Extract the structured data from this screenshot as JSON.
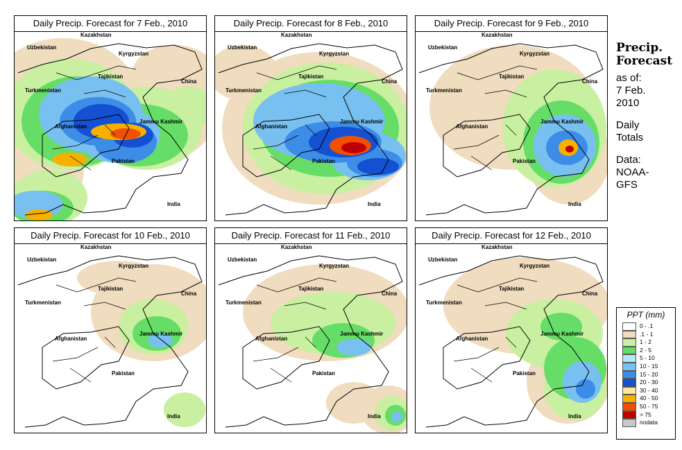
{
  "panels": [
    {
      "title": "Daily Precip. Forecast for  7 Feb., 2010"
    },
    {
      "title": "Daily Precip. Forecast for  8 Feb., 2010"
    },
    {
      "title": "Daily Precip. Forecast for  9 Feb., 2010"
    },
    {
      "title": "Daily Precip. Forecast for  10 Feb., 2010"
    },
    {
      "title": "Daily Precip. Forecast for  11 Feb., 2010"
    },
    {
      "title": "Daily Precip. Forecast for  12 Feb., 2010"
    }
  ],
  "map_labels": {
    "kazakhstan": "Kazakhstan",
    "uzbekistan": "Uzbekistan",
    "kyrgyzstan": "Kyrgyzstan",
    "tajikistan": "Tajikistan",
    "turkmenistan": "Turkmenistan",
    "china": "China",
    "afghanistan": "Afghanistan",
    "jammu_kashmir": "Jammu Kashmir",
    "pakistan": "Pakistan",
    "india": "India"
  },
  "side": {
    "title_line1": "Precip.",
    "title_line2": "Forecast",
    "asof1": "as of:",
    "asof2": "7 Feb.",
    "asof3": "2010",
    "daily1": "Daily",
    "daily2": "Totals",
    "data1": "Data:",
    "data2": "NOAA-",
    "data3": "GFS"
  },
  "legend": {
    "title": "PPT (mm)",
    "items": [
      {
        "label": "0 - .1",
        "color": "#ffffff"
      },
      {
        "label": ".1 - 1",
        "color": "#f0dcbe"
      },
      {
        "label": "1 - 2",
        "color": "#c8f0a0"
      },
      {
        "label": "2 - 5",
        "color": "#66dd66"
      },
      {
        "label": "5 - 10",
        "color": "#b4e8f8"
      },
      {
        "label": "10 - 15",
        "color": "#78c0f0"
      },
      {
        "label": "15 - 20",
        "color": "#3c8ce8"
      },
      {
        "label": "20 - 30",
        "color": "#1450d2"
      },
      {
        "label": "30 - 40",
        "color": "#ffe89a"
      },
      {
        "label": "40 - 50",
        "color": "#f8b000"
      },
      {
        "label": "50 - 75",
        "color": "#f05000"
      },
      {
        "label": "> 75",
        "color": "#c00000"
      },
      {
        "label": "nodata",
        "color": "#c8c8c8"
      }
    ]
  }
}
